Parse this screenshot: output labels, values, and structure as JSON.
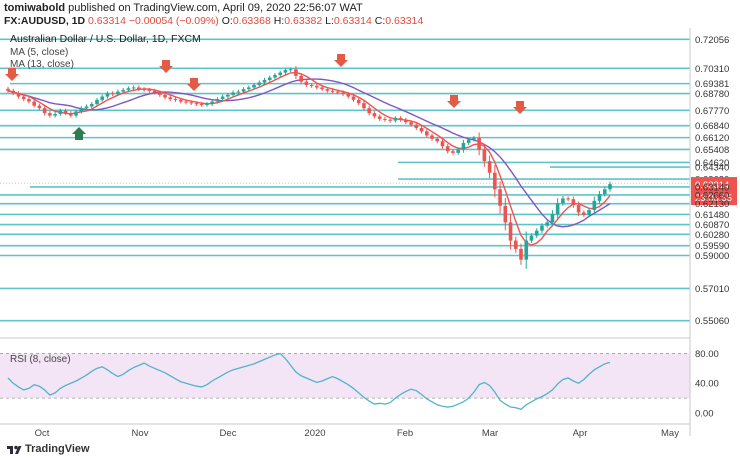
{
  "header": {
    "publisher_name": "tomiwabold",
    "publisher_text": "published on TradingView.com, April 09, 2020 22:56:07 WAT",
    "symbol": "FX:AUDUSD, 1D",
    "last": "0.63314",
    "change": "−0.00054 (−0.09%)",
    "open_label": "O:",
    "open": "0.63368",
    "high_label": "H:",
    "high": "0.63382",
    "low_label": "L:",
    "low": "0.63314",
    "close_label": "C:",
    "close": "0.63314"
  },
  "legend": {
    "title": "Australian Dollar / U.S. Dollar, 1D, FXCM",
    "ma5": "MA (5, close)",
    "ma13": "MA (13, close)",
    "rsi": "RSI (8, close)"
  },
  "footer": {
    "brand": "TradingView"
  },
  "colors": {
    "up": "#26a69a",
    "down": "#ef5350",
    "ma5": "#ef5350",
    "ma13": "#7e57c2",
    "level": "#5fc4c7",
    "rsi": "#4fb5c9",
    "rsi_band": "#f3e5f5",
    "last_price_tag": "#ef5350"
  },
  "chart_data": [
    {
      "type": "candlestick",
      "title": "Australian Dollar / U.S. Dollar, 1D, FXCM",
      "ylim": [
        0.545,
        0.725
      ],
      "x_ticks": [
        "Oct",
        "Nov",
        "Dec",
        "2020",
        "Feb",
        "Mar",
        "Apr",
        "May"
      ],
      "y_ticks": [
        "0.72056",
        "0.70310",
        "0.69381",
        "0.68780",
        "0.67770",
        "0.66840",
        "0.66120",
        "0.65408",
        "0.64620",
        "0.64340",
        "0.63620",
        "0.63314",
        "0.63140",
        "0.62660",
        "0.62130",
        "0.61480",
        "0.60870",
        "0.60280",
        "0.59590",
        "0.59000",
        "0.57010",
        "0.55060"
      ],
      "last_price": "0.63314",
      "countdown": "23:03:55",
      "support_resistance_levels": [
        0.72056,
        0.7031,
        0.69381,
        0.6878,
        0.6777,
        0.6684,
        0.6612,
        0.65408,
        0.6462,
        0.6434,
        0.6362,
        0.6314,
        0.6266,
        0.6213,
        0.6148,
        0.6087,
        0.6028,
        0.5959,
        0.59,
        0.5701,
        0.5506
      ],
      "series": [
        {
          "name": "AUDUSD",
          "close": [
            0.6895,
            0.688,
            0.686,
            0.6845,
            0.683,
            0.6805,
            0.679,
            0.676,
            0.6745,
            0.6755,
            0.6775,
            0.676,
            0.6745,
            0.677,
            0.679,
            0.68,
            0.6815,
            0.684,
            0.686,
            0.688,
            0.6875,
            0.689,
            0.69,
            0.691,
            0.6915,
            0.6905,
            0.69,
            0.6895,
            0.6885,
            0.687,
            0.6855,
            0.6845,
            0.684,
            0.683,
            0.6825,
            0.682,
            0.6815,
            0.681,
            0.6815,
            0.683,
            0.6845,
            0.686,
            0.687,
            0.6885,
            0.689,
            0.6905,
            0.6915,
            0.693,
            0.6945,
            0.696,
            0.6975,
            0.699,
            0.7005,
            0.702,
            0.7025,
            0.6985,
            0.695,
            0.693,
            0.6925,
            0.6915,
            0.6905,
            0.6895,
            0.689,
            0.6885,
            0.6875,
            0.686,
            0.684,
            0.682,
            0.679,
            0.676,
            0.674,
            0.6725,
            0.672,
            0.6715,
            0.673,
            0.672,
            0.6705,
            0.669,
            0.667,
            0.665,
            0.6625,
            0.6605,
            0.659,
            0.656,
            0.653,
            0.652,
            0.654,
            0.658,
            0.66,
            0.661,
            0.654,
            0.647,
            0.64,
            0.63,
            0.62,
            0.61,
            0.599,
            0.594,
            0.5875,
            0.599,
            0.602,
            0.605,
            0.608,
            0.61,
            0.615,
            0.6215,
            0.6245,
            0.624,
            0.6205,
            0.616,
            0.6145,
            0.6175,
            0.623,
            0.627,
            0.63,
            0.6331
          ]
        },
        {
          "name": "MA (5, close)"
        },
        {
          "name": "MA (13, close)"
        }
      ]
    },
    {
      "type": "line",
      "title": "RSI (8, close)",
      "ylim": [
        0,
        90
      ],
      "y_ticks": [
        "80.00",
        "40.00",
        "0.00"
      ],
      "band": [
        20,
        80
      ],
      "series": [
        {
          "name": "RSI (8, close)",
          "values": [
            47,
            40,
            35,
            31,
            33,
            38,
            36,
            31,
            24,
            27,
            33,
            37,
            40,
            43,
            47,
            51,
            56,
            60,
            62,
            58,
            53,
            49,
            52,
            57,
            61,
            64,
            67,
            63,
            60,
            57,
            54,
            50,
            46,
            42,
            40,
            38,
            36,
            35,
            38,
            43,
            47,
            51,
            55,
            58,
            60,
            62,
            64,
            66,
            69,
            72,
            75,
            78,
            80,
            73,
            64,
            55,
            50,
            47,
            44,
            41,
            43,
            46,
            49,
            46,
            42,
            38,
            33,
            27,
            21,
            16,
            12,
            13,
            12,
            14,
            20,
            25,
            29,
            32,
            30,
            25,
            19,
            15,
            11,
            9,
            8,
            9,
            12,
            15,
            20,
            28,
            38,
            41,
            37,
            28,
            17,
            12,
            8,
            7,
            5,
            11,
            15,
            19,
            22,
            26,
            31,
            39,
            45,
            47,
            43,
            40,
            45,
            52,
            58,
            62,
            66,
            68
          ]
        }
      ]
    }
  ]
}
